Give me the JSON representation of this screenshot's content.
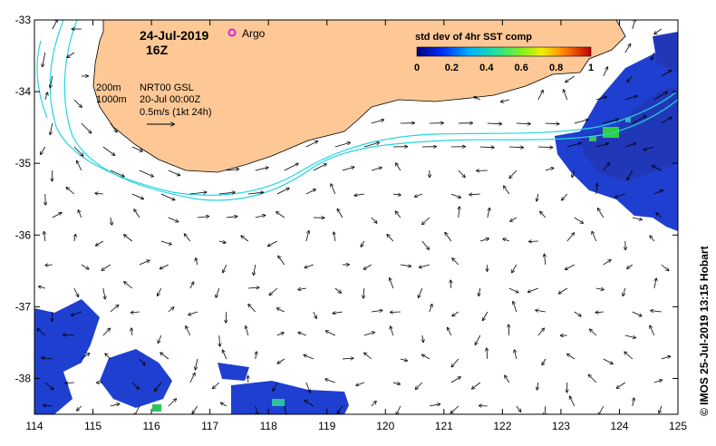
{
  "title": {
    "date": "24-Jul-2019",
    "hour": "16Z"
  },
  "argo_label": "Argo",
  "legend": {
    "label": "std dev of 4hr SST comp",
    "ticks": [
      "0",
      "0.2",
      "0.4",
      "0.6",
      "0.8",
      "1"
    ],
    "range": [
      0,
      1
    ]
  },
  "contours": {
    "c200": "200m",
    "c1000": "1000m"
  },
  "current_info": {
    "source": "NRT00 GSL",
    "date": "20-Jul 00:00Z",
    "scale": "0.5m/s (1kt 24h)"
  },
  "credit": "© IMOS 25-Jul-2019 13:15 Hobart",
  "axes": {
    "lon_range": [
      114,
      125
    ],
    "lat_range": [
      -38.5,
      -33
    ],
    "x_ticks": [
      "114",
      "115",
      "116",
      "117",
      "118",
      "119",
      "120",
      "121",
      "122",
      "123",
      "124",
      "125"
    ],
    "y_ticks": [
      "-33",
      "-34",
      "-35",
      "-36",
      "-37",
      "-38"
    ]
  },
  "colors": {
    "land": "#fdc896",
    "contour": "#22d6e0",
    "argo": "#e020e0",
    "sst_low": "#1020b0",
    "sst_high": "#20c020"
  }
}
